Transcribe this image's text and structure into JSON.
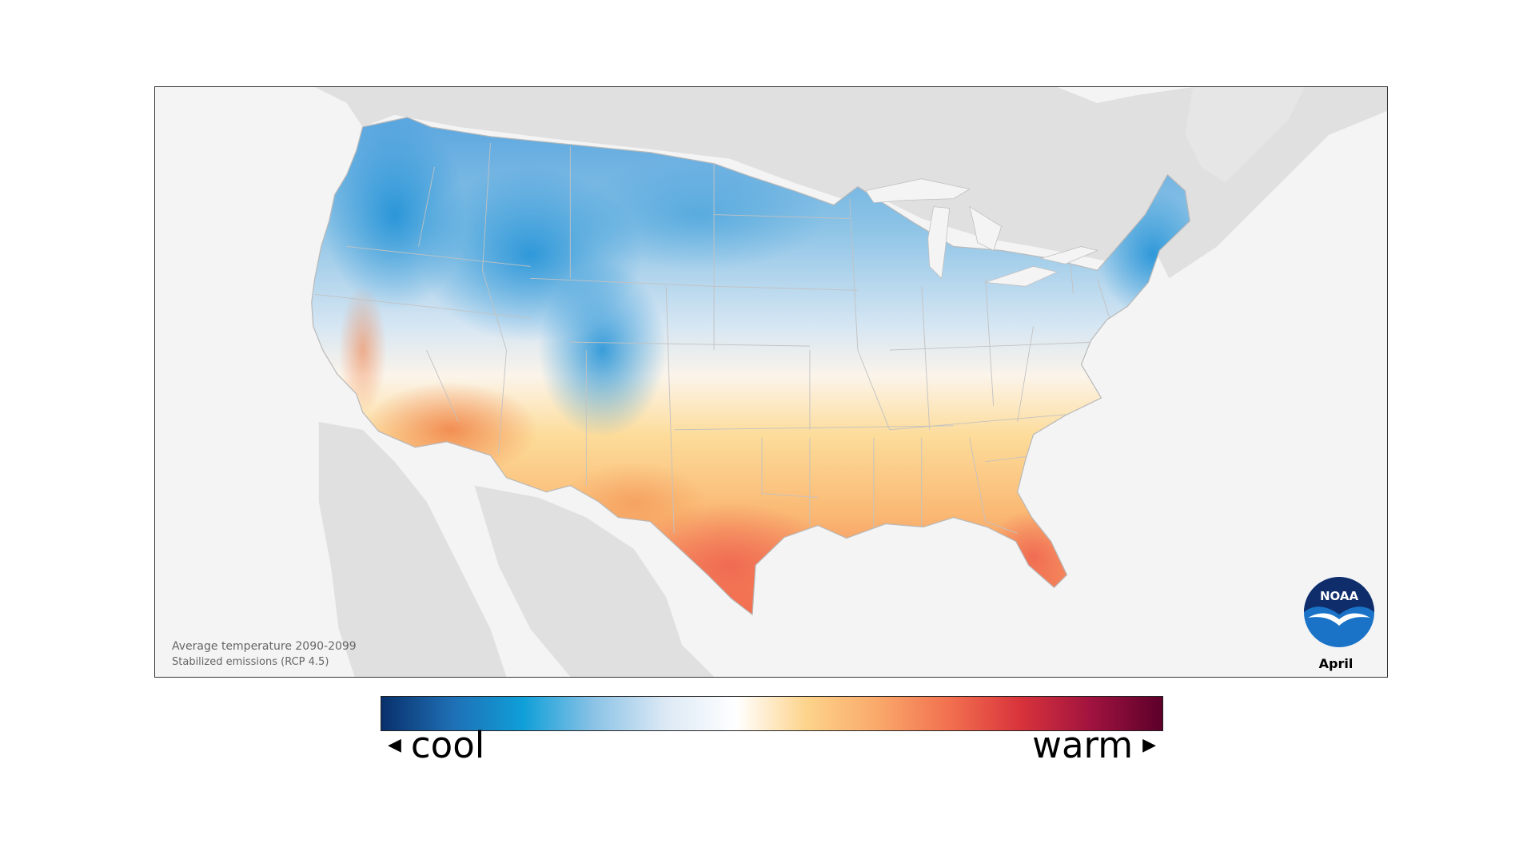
{
  "map": {
    "caption_title": "Average temperature 2090-2099",
    "caption_scenario": "Stabilized emissions (RCP 4.5)",
    "month": "April",
    "logo_text": "NOAA"
  },
  "legend": {
    "low_label": "cool",
    "high_label": "warm",
    "colors": [
      "#08306b",
      "#1f6fb5",
      "#0f9fd8",
      "#8cc3e6",
      "#dce9f5",
      "#ffffff",
      "#fdd38a",
      "#f9a86a",
      "#f2704f",
      "#d8333b",
      "#a0133f",
      "#5c002a"
    ]
  },
  "icons": {
    "logo": "noaa-logo-icon",
    "left_arrow": "triangle-left-icon",
    "right_arrow": "triangle-right-icon"
  }
}
